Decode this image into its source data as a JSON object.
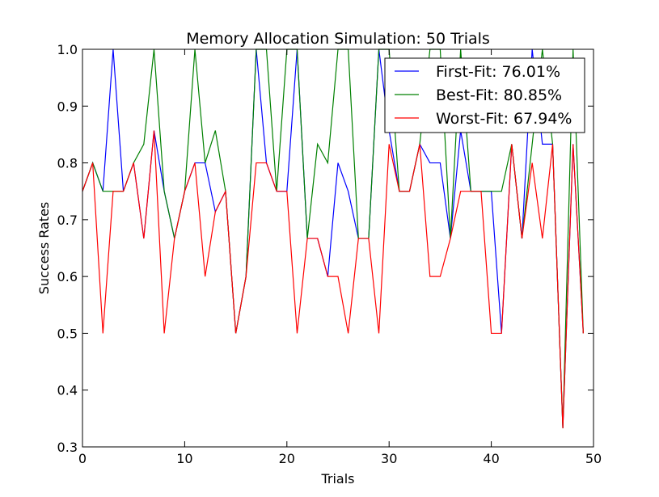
{
  "chart_data": {
    "type": "line",
    "title": "Memory Allocation Simulation: 50 Trials",
    "xlabel": "Trials",
    "ylabel": "Success Rates",
    "xlim": [
      0,
      50
    ],
    "ylim": [
      0.3,
      1.0
    ],
    "xticks": [
      0,
      10,
      20,
      30,
      40,
      50
    ],
    "yticks": [
      0.3,
      0.4,
      0.5,
      0.6,
      0.7,
      0.8,
      0.9,
      1.0
    ],
    "grid": false,
    "legend_position": "top-right",
    "x": [
      0,
      1,
      2,
      3,
      4,
      5,
      6,
      7,
      8,
      9,
      10,
      11,
      12,
      13,
      14,
      15,
      16,
      17,
      18,
      19,
      20,
      21,
      22,
      23,
      24,
      25,
      26,
      27,
      28,
      29,
      30,
      31,
      32,
      33,
      34,
      35,
      36,
      37,
      38,
      39,
      40,
      41,
      42,
      43,
      44,
      45,
      46,
      47,
      48,
      49
    ],
    "series": [
      {
        "name": "First-Fit: 76.01%",
        "color": "#0000ff",
        "values": [
          0.75,
          0.8,
          0.75,
          1.0,
          0.75,
          0.8,
          0.667,
          0.857,
          0.75,
          0.667,
          0.75,
          0.8,
          0.8,
          0.714,
          0.75,
          0.5,
          0.6,
          1.0,
          0.8,
          0.75,
          0.75,
          1.0,
          0.667,
          0.667,
          0.6,
          0.8,
          0.75,
          0.667,
          0.667,
          1.0,
          0.857,
          0.75,
          0.75,
          0.833,
          0.8,
          0.8,
          0.667,
          0.857,
          0.75,
          0.75,
          0.75,
          0.5,
          0.833,
          0.667,
          1.0,
          0.833,
          0.833,
          0.333,
          0.833,
          0.5
        ]
      },
      {
        "name": "Best-Fit: 80.85%",
        "color": "#008000",
        "values": [
          0.75,
          0.8,
          0.75,
          0.75,
          0.75,
          0.8,
          0.833,
          1.0,
          0.75,
          0.667,
          0.75,
          1.0,
          0.8,
          0.857,
          0.75,
          0.5,
          0.6,
          1.0,
          1.0,
          0.75,
          1.0,
          1.0,
          0.667,
          0.833,
          0.8,
          1.0,
          1.0,
          0.667,
          0.667,
          1.0,
          1.0,
          0.75,
          0.75,
          0.833,
          1.0,
          1.0,
          0.667,
          1.0,
          0.75,
          0.75,
          0.75,
          0.75,
          0.833,
          0.667,
          0.833,
          1.0,
          0.833,
          0.333,
          1.0,
          0.5
        ]
      },
      {
        "name": "Worst-Fit: 67.94%",
        "color": "#ff0000",
        "values": [
          0.75,
          0.8,
          0.5,
          0.75,
          0.75,
          0.8,
          0.667,
          0.857,
          0.5,
          0.667,
          0.75,
          0.8,
          0.6,
          0.714,
          0.75,
          0.5,
          0.6,
          0.8,
          0.8,
          0.75,
          0.75,
          0.5,
          0.667,
          0.667,
          0.6,
          0.6,
          0.5,
          0.667,
          0.667,
          0.5,
          0.833,
          0.75,
          0.75,
          0.833,
          0.6,
          0.6,
          0.667,
          0.75,
          0.75,
          0.75,
          0.5,
          0.5,
          0.833,
          0.667,
          0.8,
          0.667,
          0.833,
          0.333,
          0.833,
          0.5
        ]
      }
    ]
  }
}
